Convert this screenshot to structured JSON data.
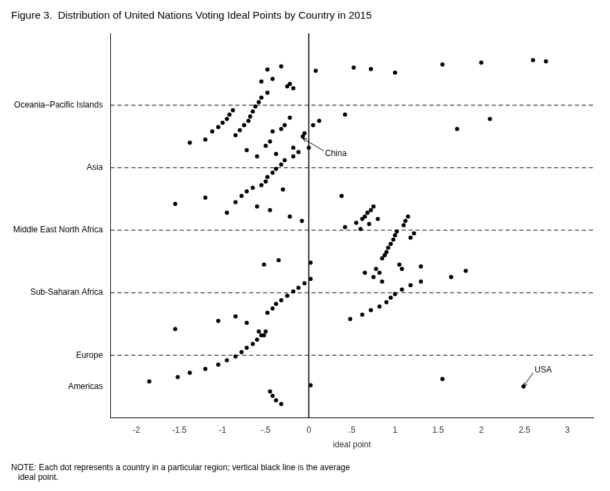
{
  "chart_data": {
    "type": "scatter",
    "title": "Figure 3.  Distribution of United Nations Voting Ideal Points by Country in 2015",
    "xlabel": "ideal point",
    "note": "NOTE: Each dot represents a country in a particular region; vertical black line is the average\n   ideal point.",
    "xlim": [
      -2.3,
      3.3
    ],
    "xticks": [
      -2,
      {
        "value": -1.5,
        "label": "-1.5"
      },
      -1,
      {
        "value": -0.5,
        "label": "-.5"
      },
      0,
      {
        "value": 0.5,
        "label": ".5"
      },
      1,
      1.5,
      2,
      2.5,
      3
    ],
    "ylim": [
      0.5,
      6.65
    ],
    "yticks": [
      {
        "value": 5.5,
        "label": "Oceania–Pacific Islands"
      },
      {
        "value": 4.5,
        "label": "Asia"
      },
      {
        "value": 3.5,
        "label": "Middle East North Africa"
      },
      {
        "value": 2.5,
        "label": "Sub-Saharan Africa"
      },
      {
        "value": 1.5,
        "label": "Europe"
      },
      {
        "value": 1.0,
        "label": "Americas"
      }
    ],
    "grid": false,
    "color": "#000000",
    "reference_lines": [
      {
        "axis": "y",
        "values": [
          1.5,
          2.5,
          3.5,
          4.5,
          5.5
        ],
        "line_style": "dashed"
      },
      {
        "axis": "x",
        "values": [
          0.0
        ],
        "line_style": "solid"
      }
    ],
    "annotations": [
      {
        "text": "China",
        "x": -0.07,
        "y": 4.97
      },
      {
        "text": "USA",
        "x": 2.49,
        "y": 1.0
      }
    ],
    "series": [
      {
        "x": [
          -0.48,
          -0.32,
          -0.55,
          -0.42,
          -0.25,
          -0.22,
          -0.18,
          0.08,
          0.52,
          0.72,
          1.0,
          1.55,
          2.0,
          2.6,
          2.75
        ],
        "y": [
          6.07,
          6.12,
          5.88,
          5.92,
          5.8,
          5.84,
          5.77,
          6.05,
          6.1,
          6.08,
          6.02,
          6.15,
          6.18,
          6.22,
          6.2
        ]
      },
      {
        "x": [
          -1.38,
          -1.2,
          -1.12,
          -1.05,
          -1.0,
          -0.95,
          -0.92,
          -0.88,
          -0.85,
          -0.8,
          -0.75,
          -0.72,
          -0.7,
          -0.68,
          -0.65,
          -0.62,
          -0.6,
          -0.58,
          -0.55,
          -0.5,
          -0.48,
          -0.45,
          -0.42,
          -0.38,
          -0.32,
          -0.28,
          -0.22,
          -0.18,
          -0.07,
          -0.05,
          0.05,
          0.12,
          0.42,
          1.72,
          2.1
        ],
        "y": [
          4.9,
          4.95,
          5.08,
          5.15,
          5.22,
          5.28,
          5.35,
          5.42,
          5.02,
          5.1,
          5.18,
          4.78,
          5.25,
          5.32,
          5.4,
          5.48,
          4.68,
          5.55,
          5.62,
          4.85,
          5.7,
          4.92,
          5.08,
          4.72,
          5.12,
          5.18,
          5.3,
          4.82,
          5.0,
          5.05,
          5.18,
          5.25,
          5.35,
          5.12,
          5.28
        ]
      },
      {
        "x": [
          -1.55,
          -1.2,
          -0.95,
          -0.85,
          -0.78,
          -0.72,
          -0.65,
          -0.6,
          -0.55,
          -0.5,
          -0.48,
          -0.45,
          -0.42,
          -0.38,
          -0.32,
          -0.28,
          -0.22,
          -0.18,
          -0.12,
          -0.08,
          0.0,
          0.38,
          -0.3
        ],
        "y": [
          3.92,
          4.02,
          3.78,
          3.95,
          4.05,
          4.12,
          4.18,
          3.88,
          4.22,
          4.28,
          4.35,
          3.82,
          4.42,
          4.48,
          4.55,
          4.62,
          3.72,
          4.68,
          4.75,
          3.65,
          4.82,
          4.05,
          4.15
        ]
      },
      {
        "x": [
          -0.52,
          -0.35,
          0.02,
          0.42,
          0.55,
          0.62,
          0.65,
          0.68,
          0.72,
          0.75,
          0.78,
          0.82,
          0.85,
          0.88,
          0.9,
          0.92,
          0.95,
          0.98,
          1.0,
          1.02,
          1.05,
          1.08,
          1.1,
          1.12,
          1.15,
          1.18,
          1.22,
          0.6,
          0.7,
          0.8,
          0.65,
          0.75,
          0.85,
          1.3,
          1.82
        ],
        "y": [
          2.95,
          3.02,
          2.98,
          3.55,
          3.62,
          3.68,
          3.72,
          3.78,
          3.82,
          3.88,
          2.88,
          2.82,
          3.05,
          3.1,
          3.15,
          3.22,
          3.28,
          3.35,
          3.42,
          3.48,
          2.95,
          2.88,
          3.58,
          3.65,
          3.72,
          3.38,
          3.45,
          3.52,
          3.6,
          3.68,
          2.82,
          2.75,
          2.68,
          2.92,
          2.85
        ]
      },
      {
        "x": [
          -1.55,
          -1.05,
          -0.85,
          -0.72,
          -0.58,
          -0.52,
          -0.48,
          -0.42,
          -0.38,
          -0.32,
          -0.25,
          -0.18,
          -0.12,
          -0.05,
          0.02,
          0.48,
          0.62,
          0.72,
          0.82,
          0.9,
          0.95,
          1.0,
          1.08,
          1.18,
          1.3,
          1.65
        ],
        "y": [
          1.92,
          2.05,
          2.12,
          2.02,
          1.88,
          1.82,
          2.18,
          2.25,
          2.32,
          2.38,
          2.45,
          2.52,
          2.58,
          2.65,
          2.72,
          2.08,
          2.15,
          2.22,
          2.28,
          2.35,
          2.42,
          2.48,
          2.55,
          2.62,
          2.68,
          2.75
        ]
      },
      {
        "x": [
          -1.85,
          -1.52,
          -1.38,
          -1.2,
          -1.05,
          -0.95,
          -0.85,
          -0.78,
          -0.72,
          -0.65,
          -0.6,
          -0.55,
          -0.5,
          -0.45,
          -0.42,
          -0.38,
          -0.32,
          0.02,
          1.55,
          2.49
        ],
        "y": [
          1.08,
          1.15,
          1.22,
          1.28,
          1.35,
          1.42,
          1.48,
          1.55,
          1.62,
          1.68,
          1.75,
          1.82,
          1.88,
          0.92,
          0.85,
          0.78,
          0.72,
          1.02,
          1.12,
          1.0
        ]
      }
    ]
  }
}
